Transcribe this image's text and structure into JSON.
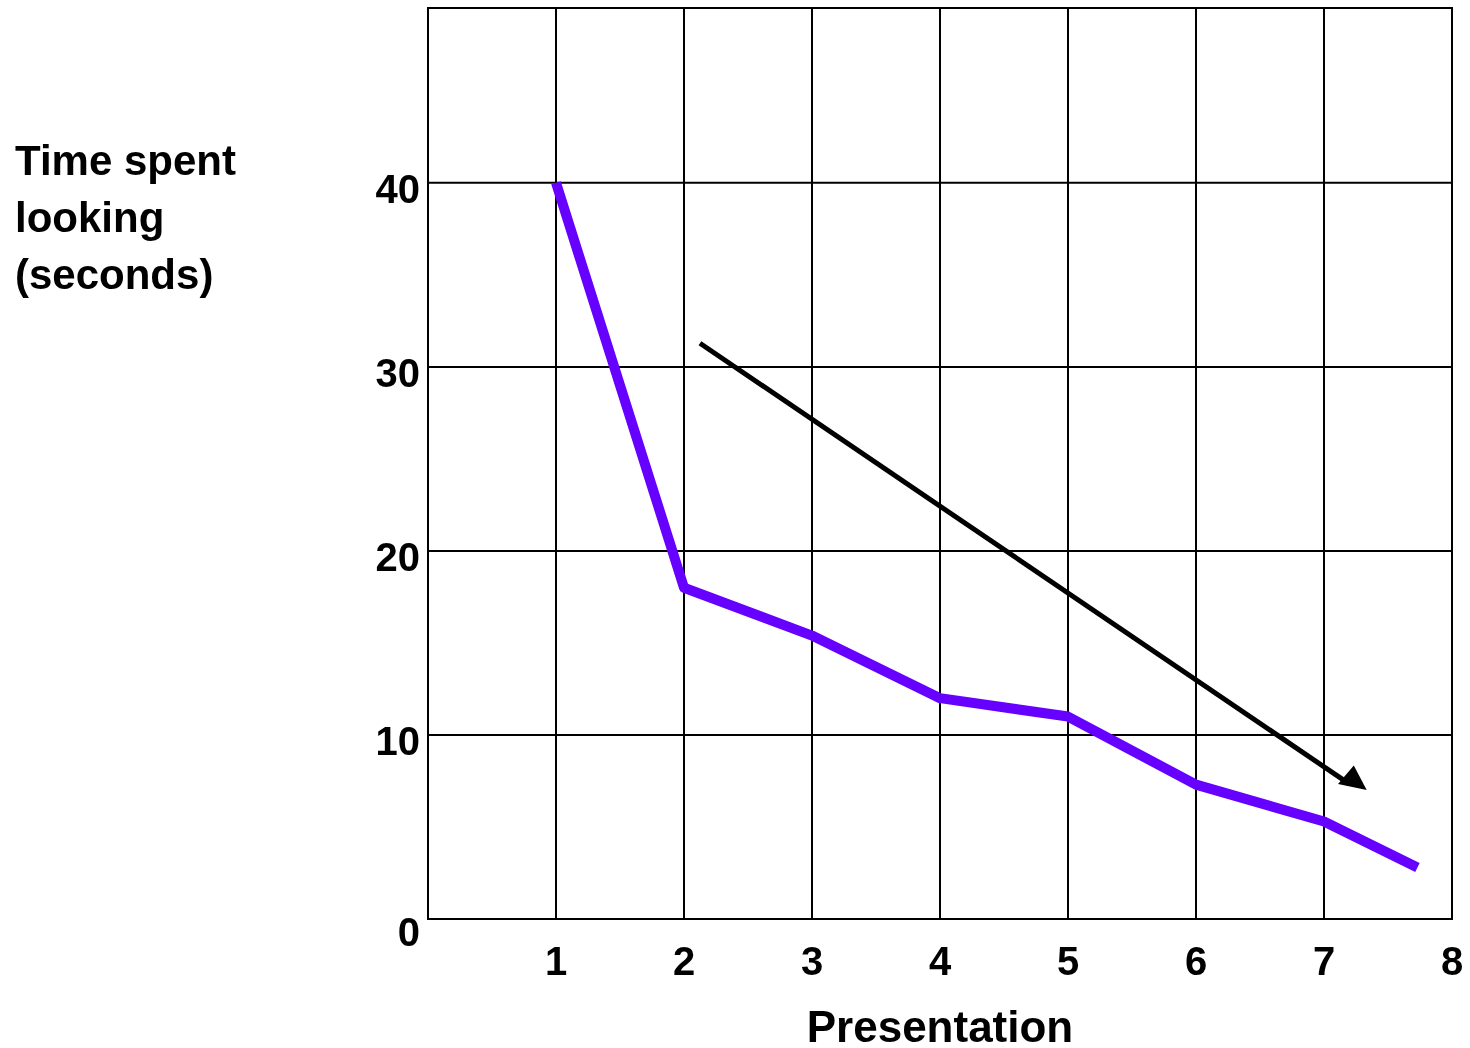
{
  "chart_data": {
    "type": "line",
    "xlabel": "Presentation",
    "ylabel": "Time spent looking (seconds)",
    "x": [
      1,
      2,
      3,
      4,
      5,
      6,
      7,
      7.73
    ],
    "series": [
      {
        "color": "#6600ff",
        "values": [
          40,
          18,
          15.4,
          12,
          11,
          7.3,
          5.3,
          2.8
        ]
      }
    ],
    "xlim": [
      0,
      8
    ],
    "xticks": [
      1,
      2,
      3,
      4,
      5,
      6,
      7,
      8
    ],
    "ylim": [
      0,
      49.5
    ],
    "yticks": [
      0,
      10,
      20,
      30,
      40
    ],
    "grid": true,
    "marker": "none",
    "line_style": "solid"
  }
}
